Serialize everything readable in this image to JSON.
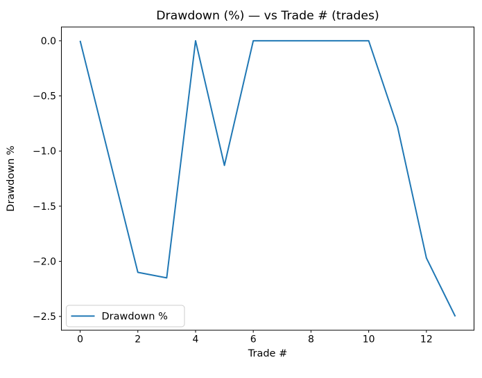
{
  "chart_data": {
    "type": "line",
    "title": "Drawdown (%) — vs Trade # (trades)",
    "xlabel": "Trade #",
    "ylabel": "Drawdown %",
    "x": [
      0,
      1,
      2,
      3,
      4,
      5,
      6,
      7,
      8,
      9,
      10,
      11,
      12,
      13
    ],
    "series": [
      {
        "name": "Drawdown %",
        "values": [
          0.0,
          -1.05,
          -2.1,
          -2.15,
          0.0,
          -1.13,
          0.0,
          0.0,
          0.0,
          0.0,
          0.0,
          -0.78,
          -1.97,
          -2.5
        ],
        "color": "#1f77b4"
      }
    ],
    "xlim": [
      -0.65,
      13.65
    ],
    "ylim": [
      -2.625,
      0.125
    ],
    "xticks": [
      {
        "v": 0,
        "label": "0"
      },
      {
        "v": 2,
        "label": "2"
      },
      {
        "v": 4,
        "label": "4"
      },
      {
        "v": 6,
        "label": "6"
      },
      {
        "v": 8,
        "label": "8"
      },
      {
        "v": 10,
        "label": "10"
      },
      {
        "v": 12,
        "label": "12"
      }
    ],
    "yticks": [
      {
        "v": 0.0,
        "label": "0.0"
      },
      {
        "v": -0.5,
        "label": "−0.5"
      },
      {
        "v": -1.0,
        "label": "−1.0"
      },
      {
        "v": -1.5,
        "label": "−1.5"
      },
      {
        "v": -2.0,
        "label": "−2.0"
      },
      {
        "v": -2.5,
        "label": "−2.5"
      }
    ],
    "grid": false,
    "legend": {
      "position": "lower left",
      "entries": [
        "Drawdown %"
      ]
    },
    "colors": {
      "line": "#1f77b4",
      "text": "#000000",
      "spine": "#000000",
      "legend_border": "#cccccc",
      "background": "#ffffff"
    }
  }
}
